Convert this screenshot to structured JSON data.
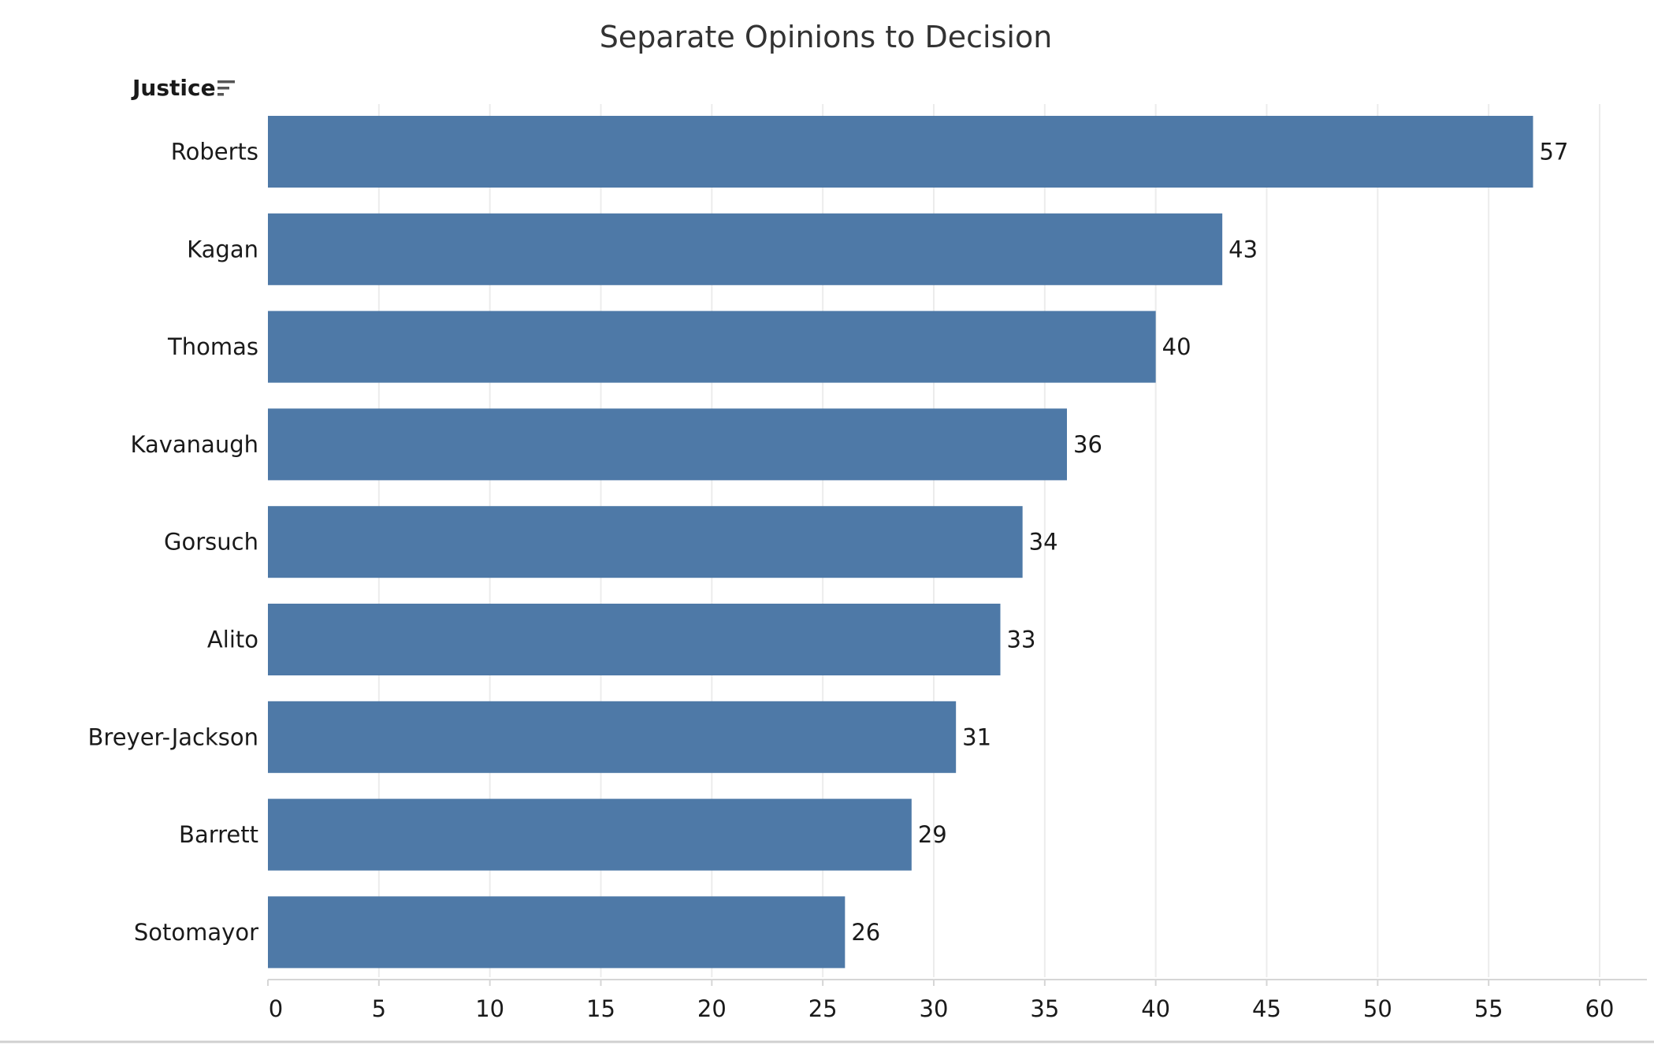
{
  "chart_data": {
    "type": "bar",
    "orientation": "horizontal",
    "title": "Separate Opinions to Decision",
    "row_field_label": "Justice",
    "sort_indicator_icon": "sort-descending-icon",
    "categories": [
      "Roberts",
      "Kagan",
      "Thomas",
      "Kavanaugh",
      "Gorsuch",
      "Alito",
      "Breyer-Jackson",
      "Barrett",
      "Sotomayor"
    ],
    "values": [
      57,
      43,
      40,
      36,
      34,
      33,
      31,
      29,
      26
    ],
    "xlabel": "",
    "ylabel": "",
    "xlim": [
      0,
      60
    ],
    "x_ticks": [
      0,
      5,
      10,
      15,
      20,
      25,
      30,
      35,
      40,
      45,
      50,
      55,
      60
    ],
    "grid": true,
    "show_data_labels": true,
    "bar_color": "#4e79a7",
    "grid_color": "#ececec",
    "axis_color": "#d6d6d6"
  }
}
